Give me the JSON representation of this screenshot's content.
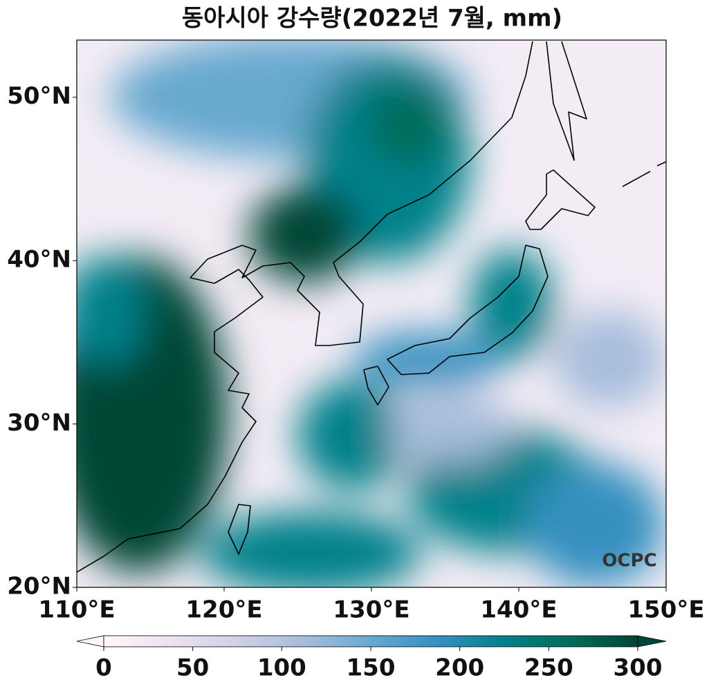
{
  "title": "동아시아 강수량(2022년 7월, mm)",
  "map": {
    "xlim": [
      110,
      150
    ],
    "ylim": [
      20,
      53.5
    ],
    "xticks": [
      {
        "value": 110,
        "label": "110°E"
      },
      {
        "value": 120,
        "label": "120°E"
      },
      {
        "value": 130,
        "label": "130°E"
      },
      {
        "value": 140,
        "label": "140°E"
      },
      {
        "value": 150,
        "label": "150°E"
      }
    ],
    "yticks": [
      {
        "value": 20,
        "label": "20°N"
      },
      {
        "value": 30,
        "label": "30°N"
      },
      {
        "value": 40,
        "label": "40°N"
      },
      {
        "value": 50,
        "label": "50°N"
      }
    ],
    "watermark": "OCPC"
  },
  "colorbar": {
    "lim": [
      0,
      300
    ],
    "ticks": [
      0,
      50,
      100,
      150,
      200,
      250,
      300
    ],
    "colors": [
      "#fff7fb",
      "#ece2f0",
      "#d0d1e6",
      "#a6bddb",
      "#67a9cf",
      "#3690c0",
      "#02818a",
      "#016c59",
      "#014636"
    ]
  }
}
